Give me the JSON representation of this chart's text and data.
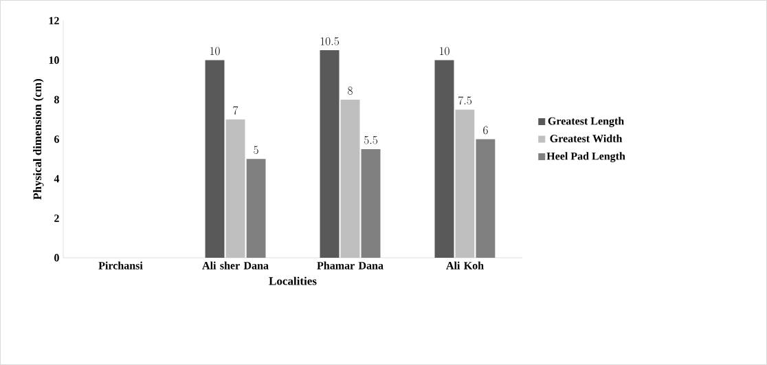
{
  "chart_data": {
    "type": "bar",
    "xlabel": "Localities",
    "ylabel": "Physical dimension (cm)",
    "categories": [
      "Pirchansi",
      "Ali sher Dana",
      "Phamar Dana",
      "Ali Koh"
    ],
    "series": [
      {
        "name": "Greatest Length",
        "color": "#595959",
        "values": [
          null,
          10,
          10.5,
          10
        ]
      },
      {
        "name": "Greatest Width",
        "color": "#bfbfbf",
        "values": [
          null,
          7,
          8,
          7.5
        ]
      },
      {
        "name": "Heel Pad Length",
        "color": "#808080",
        "values": [
          null,
          5,
          5.5,
          6
        ]
      }
    ],
    "ylim": [
      0,
      12
    ],
    "yticks": [
      0,
      2,
      4,
      6,
      8,
      10,
      12
    ],
    "data_labels": true,
    "legend": "right",
    "grid": false
  }
}
